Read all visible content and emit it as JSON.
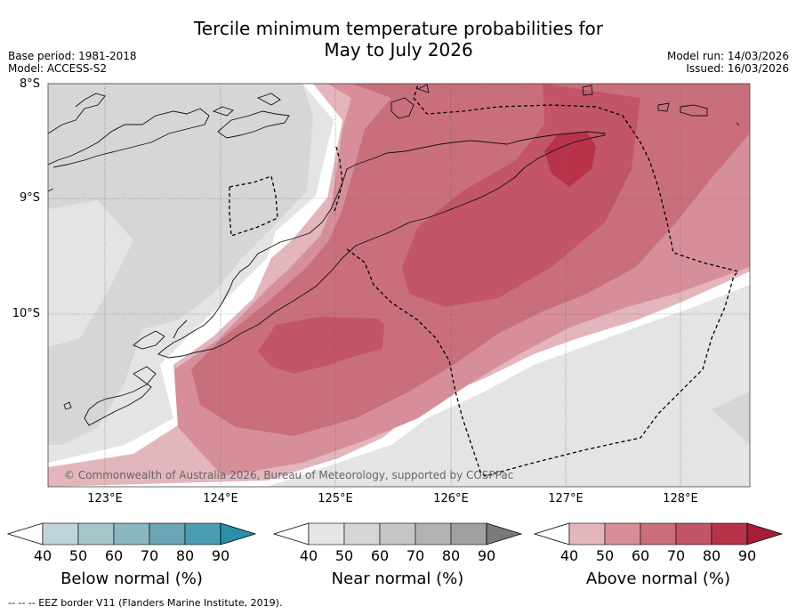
{
  "title": {
    "line1": "Tercile minimum temperature probabilities for",
    "line2": "May to July 2026"
  },
  "meta": {
    "base_period": "Base period: 1981-2018",
    "model": "Model: ACCESS-S2",
    "model_run": "Model run: 14/03/2026",
    "issued": "Issued: 16/03/2026"
  },
  "axes": {
    "lat_labels": [
      "8°S",
      "9°S",
      "10°S"
    ],
    "lon_labels": [
      "123°E",
      "124°E",
      "125°E",
      "126°E",
      "127°E",
      "128°E"
    ]
  },
  "copyright": "© Commonwealth of Australia 2026, Bureau of Meteorology, supported by COSPPac",
  "colorbars": [
    {
      "label": "Below normal (%)",
      "ticks": [
        "40",
        "50",
        "60",
        "70",
        "80",
        "90"
      ],
      "colors": [
        "#bfd3db",
        "#a6c6cc",
        "#8bb7c0",
        "#6aa6b5",
        "#4a9eb0",
        "#2a8fa8"
      ]
    },
    {
      "label": "Near normal (%)",
      "ticks": [
        "40",
        "50",
        "60",
        "70",
        "80",
        "90"
      ],
      "colors": [
        "#e6e6e6",
        "#d6d6d6",
        "#c6c6c6",
        "#b3b3b3",
        "#a0a0a0",
        "#7a7a7a"
      ]
    },
    {
      "label": "Above normal (%)",
      "ticks": [
        "40",
        "50",
        "60",
        "70",
        "80",
        "90"
      ],
      "colors": [
        "#e3b6bd",
        "#d68f9a",
        "#c96f7c",
        "#c25566",
        "#b8334a",
        "#a81e38"
      ]
    }
  ],
  "footer": "--  --  -- EEZ border V11 (Flanders Marine Institute, 2019)."
}
